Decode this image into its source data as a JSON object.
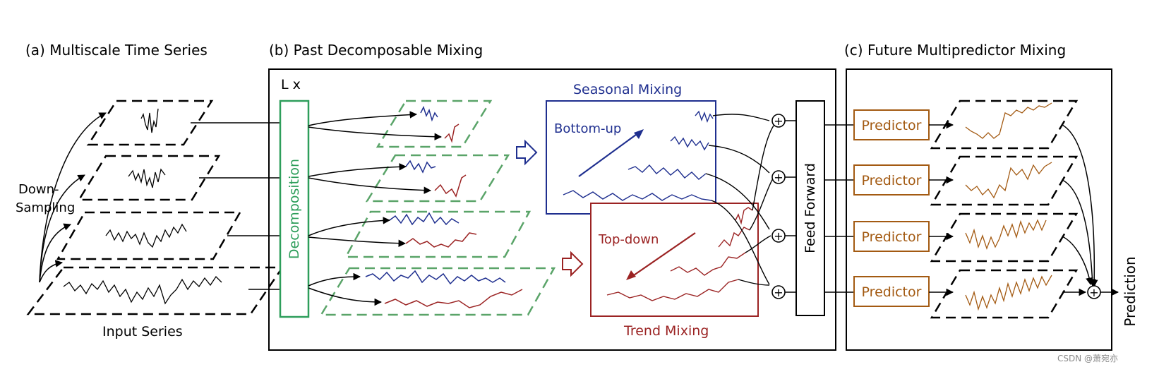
{
  "headings": {
    "a": "(a) Multiscale Time Series",
    "b": "(b) Past Decomposable Mixing",
    "c": "(c) Future Multipredictor Mixing"
  },
  "labels": {
    "down_sampling_line1": "Down-",
    "down_sampling_line2": "Sampling",
    "input_series": "Input Series",
    "layers": "L x",
    "decomposition": "Decomposition",
    "seasonal_mixing": "Seasonal Mixing",
    "bottom_up": "Bottom-up",
    "top_down": "Top-down",
    "trend_mixing": "Trend Mixing",
    "feed_forward": "Feed Forward",
    "predictor": "Predictor",
    "prediction": "Prediction",
    "plus": "+"
  },
  "watermark": "CSDN @萧宛亦",
  "colors": {
    "black": "#000000",
    "decomposition_green": "#2e9e5b",
    "dashed_green": "#5aa469",
    "seasonal_blue": "#1f2f8f",
    "trend_red": "#9b2323",
    "predictor_brown": "#a35a12"
  }
}
